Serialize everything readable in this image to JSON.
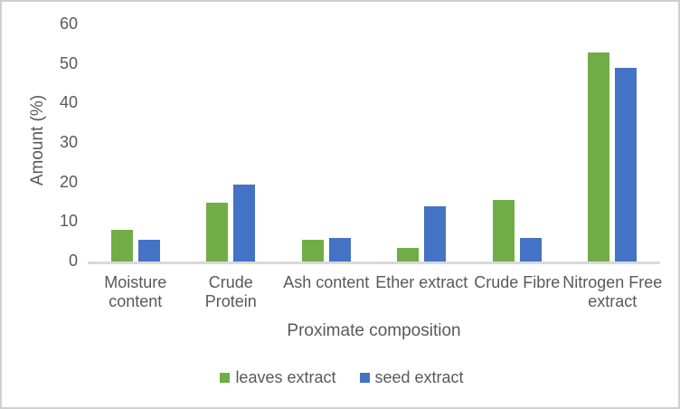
{
  "chart_data": {
    "type": "bar",
    "title": "",
    "xlabel": "Proximate composition",
    "ylabel": "Amount (%)",
    "categories": [
      "Moisture content",
      "Crude Protein",
      "Ash content",
      "Ether extract",
      "Crude Fibre",
      "Nitrogen Free extract"
    ],
    "category_label_lines": [
      [
        "Moisture",
        "content"
      ],
      [
        "Crude",
        "Protein"
      ],
      [
        "Ash content"
      ],
      [
        "Ether extract"
      ],
      [
        "Crude Fibre"
      ],
      [
        "Nitrogen Free",
        "extract"
      ]
    ],
    "series": [
      {
        "name": "leaves extract",
        "color": "#70AD47",
        "values": [
          8,
          15,
          5.5,
          3.5,
          15.5,
          52.8
        ]
      },
      {
        "name": "seed extract",
        "color": "#4472C4",
        "values": [
          5.5,
          19.5,
          6,
          14,
          6,
          49
        ]
      }
    ],
    "ylim": [
      0,
      60
    ],
    "yticks": [
      0,
      10,
      20,
      30,
      40,
      50,
      60
    ],
    "grid": false,
    "legend_position": "bottom"
  },
  "colors": {
    "bar_green": "#70AD47",
    "bar_blue": "#4472C4",
    "axis_line": "#D9D9D9",
    "text": "#595959",
    "frame_border": "#CFCFCF",
    "background": "#FFFFFF"
  }
}
